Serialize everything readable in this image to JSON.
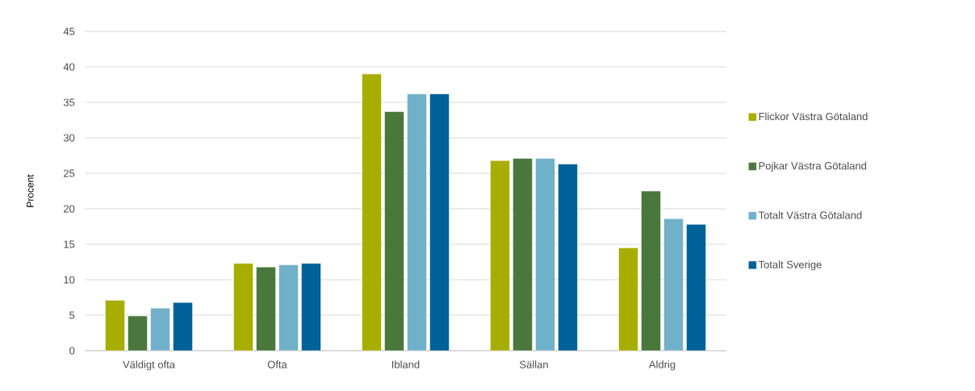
{
  "chart_data": {
    "type": "bar",
    "ylabel": "Procent",
    "categories": [
      "Väldigt ofta",
      "Ofta",
      "Ibland",
      "Sällan",
      "Aldrig"
    ],
    "series": [
      {
        "name": "Flickor Västra Götaland",
        "color": "#a8ae00",
        "values": [
          7.1,
          12.3,
          39.0,
          26.8,
          14.5
        ]
      },
      {
        "name": "Pojkar Västra Götaland",
        "color": "#4a773c",
        "values": [
          4.9,
          11.8,
          33.7,
          27.1,
          22.5
        ]
      },
      {
        "name": "Totalt Västra Götaland",
        "color": "#71b0c9",
        "values": [
          6.0,
          12.1,
          36.2,
          27.1,
          18.6
        ]
      },
      {
        "name": "Totalt Sverige",
        "color": "#006298",
        "values": [
          6.8,
          12.3,
          36.2,
          26.3,
          17.8
        ]
      }
    ],
    "ylim": [
      0,
      45
    ],
    "yticks": [
      0,
      5,
      10,
      15,
      20,
      25,
      30,
      35,
      40,
      45
    ],
    "grid": "y",
    "legend": "right"
  }
}
